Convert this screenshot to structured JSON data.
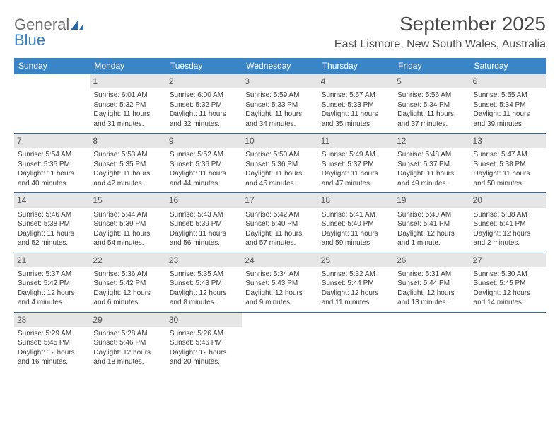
{
  "logo": {
    "line1": "General",
    "line2": "Blue"
  },
  "title": "September 2025",
  "location": "East Lismore, New South Wales, Australia",
  "colors": {
    "header_bar": "#3a85c6",
    "header_text": "#ffffff",
    "daynum_bg": "#e6e6e6",
    "week_divider": "#3a6a9a",
    "body_text": "#3a3a3a",
    "logo_grey": "#6b6b6b",
    "logo_blue": "#3a7ebf"
  },
  "weekdays": [
    "Sunday",
    "Monday",
    "Tuesday",
    "Wednesday",
    "Thursday",
    "Friday",
    "Saturday"
  ],
  "weeks": [
    [
      {
        "empty": true
      },
      {
        "day": "1",
        "sunrise": "Sunrise: 6:01 AM",
        "sunset": "Sunset: 5:32 PM",
        "daylight": "Daylight: 11 hours and 31 minutes."
      },
      {
        "day": "2",
        "sunrise": "Sunrise: 6:00 AM",
        "sunset": "Sunset: 5:32 PM",
        "daylight": "Daylight: 11 hours and 32 minutes."
      },
      {
        "day": "3",
        "sunrise": "Sunrise: 5:59 AM",
        "sunset": "Sunset: 5:33 PM",
        "daylight": "Daylight: 11 hours and 34 minutes."
      },
      {
        "day": "4",
        "sunrise": "Sunrise: 5:57 AM",
        "sunset": "Sunset: 5:33 PM",
        "daylight": "Daylight: 11 hours and 35 minutes."
      },
      {
        "day": "5",
        "sunrise": "Sunrise: 5:56 AM",
        "sunset": "Sunset: 5:34 PM",
        "daylight": "Daylight: 11 hours and 37 minutes."
      },
      {
        "day": "6",
        "sunrise": "Sunrise: 5:55 AM",
        "sunset": "Sunset: 5:34 PM",
        "daylight": "Daylight: 11 hours and 39 minutes."
      }
    ],
    [
      {
        "day": "7",
        "sunrise": "Sunrise: 5:54 AM",
        "sunset": "Sunset: 5:35 PM",
        "daylight": "Daylight: 11 hours and 40 minutes."
      },
      {
        "day": "8",
        "sunrise": "Sunrise: 5:53 AM",
        "sunset": "Sunset: 5:35 PM",
        "daylight": "Daylight: 11 hours and 42 minutes."
      },
      {
        "day": "9",
        "sunrise": "Sunrise: 5:52 AM",
        "sunset": "Sunset: 5:36 PM",
        "daylight": "Daylight: 11 hours and 44 minutes."
      },
      {
        "day": "10",
        "sunrise": "Sunrise: 5:50 AM",
        "sunset": "Sunset: 5:36 PM",
        "daylight": "Daylight: 11 hours and 45 minutes."
      },
      {
        "day": "11",
        "sunrise": "Sunrise: 5:49 AM",
        "sunset": "Sunset: 5:37 PM",
        "daylight": "Daylight: 11 hours and 47 minutes."
      },
      {
        "day": "12",
        "sunrise": "Sunrise: 5:48 AM",
        "sunset": "Sunset: 5:37 PM",
        "daylight": "Daylight: 11 hours and 49 minutes."
      },
      {
        "day": "13",
        "sunrise": "Sunrise: 5:47 AM",
        "sunset": "Sunset: 5:38 PM",
        "daylight": "Daylight: 11 hours and 50 minutes."
      }
    ],
    [
      {
        "day": "14",
        "sunrise": "Sunrise: 5:46 AM",
        "sunset": "Sunset: 5:38 PM",
        "daylight": "Daylight: 11 hours and 52 minutes."
      },
      {
        "day": "15",
        "sunrise": "Sunrise: 5:44 AM",
        "sunset": "Sunset: 5:39 PM",
        "daylight": "Daylight: 11 hours and 54 minutes."
      },
      {
        "day": "16",
        "sunrise": "Sunrise: 5:43 AM",
        "sunset": "Sunset: 5:39 PM",
        "daylight": "Daylight: 11 hours and 56 minutes."
      },
      {
        "day": "17",
        "sunrise": "Sunrise: 5:42 AM",
        "sunset": "Sunset: 5:40 PM",
        "daylight": "Daylight: 11 hours and 57 minutes."
      },
      {
        "day": "18",
        "sunrise": "Sunrise: 5:41 AM",
        "sunset": "Sunset: 5:40 PM",
        "daylight": "Daylight: 11 hours and 59 minutes."
      },
      {
        "day": "19",
        "sunrise": "Sunrise: 5:40 AM",
        "sunset": "Sunset: 5:41 PM",
        "daylight": "Daylight: 12 hours and 1 minute."
      },
      {
        "day": "20",
        "sunrise": "Sunrise: 5:38 AM",
        "sunset": "Sunset: 5:41 PM",
        "daylight": "Daylight: 12 hours and 2 minutes."
      }
    ],
    [
      {
        "day": "21",
        "sunrise": "Sunrise: 5:37 AM",
        "sunset": "Sunset: 5:42 PM",
        "daylight": "Daylight: 12 hours and 4 minutes."
      },
      {
        "day": "22",
        "sunrise": "Sunrise: 5:36 AM",
        "sunset": "Sunset: 5:42 PM",
        "daylight": "Daylight: 12 hours and 6 minutes."
      },
      {
        "day": "23",
        "sunrise": "Sunrise: 5:35 AM",
        "sunset": "Sunset: 5:43 PM",
        "daylight": "Daylight: 12 hours and 8 minutes."
      },
      {
        "day": "24",
        "sunrise": "Sunrise: 5:34 AM",
        "sunset": "Sunset: 5:43 PM",
        "daylight": "Daylight: 12 hours and 9 minutes."
      },
      {
        "day": "25",
        "sunrise": "Sunrise: 5:32 AM",
        "sunset": "Sunset: 5:44 PM",
        "daylight": "Daylight: 12 hours and 11 minutes."
      },
      {
        "day": "26",
        "sunrise": "Sunrise: 5:31 AM",
        "sunset": "Sunset: 5:44 PM",
        "daylight": "Daylight: 12 hours and 13 minutes."
      },
      {
        "day": "27",
        "sunrise": "Sunrise: 5:30 AM",
        "sunset": "Sunset: 5:45 PM",
        "daylight": "Daylight: 12 hours and 14 minutes."
      }
    ],
    [
      {
        "day": "28",
        "sunrise": "Sunrise: 5:29 AM",
        "sunset": "Sunset: 5:45 PM",
        "daylight": "Daylight: 12 hours and 16 minutes."
      },
      {
        "day": "29",
        "sunrise": "Sunrise: 5:28 AM",
        "sunset": "Sunset: 5:46 PM",
        "daylight": "Daylight: 12 hours and 18 minutes."
      },
      {
        "day": "30",
        "sunrise": "Sunrise: 5:26 AM",
        "sunset": "Sunset: 5:46 PM",
        "daylight": "Daylight: 12 hours and 20 minutes."
      },
      {
        "empty": true
      },
      {
        "empty": true
      },
      {
        "empty": true
      },
      {
        "empty": true
      }
    ]
  ]
}
